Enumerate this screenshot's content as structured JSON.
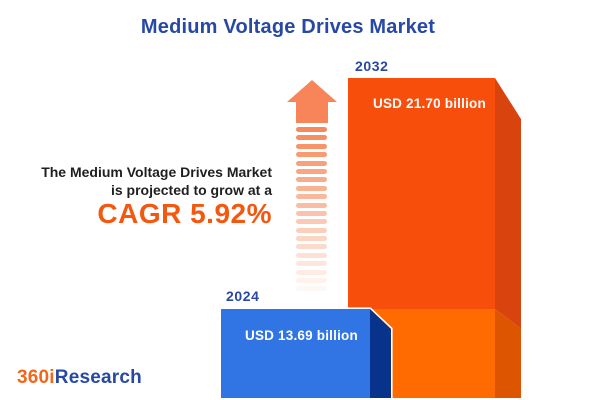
{
  "title": "Medium Voltage Drives Market",
  "intro": {
    "line1": "The Medium Voltage Drives Market",
    "line2": "is projected to grow at a",
    "cagr": "CAGR 5.92%"
  },
  "bars": {
    "b2024": {
      "year": "2024",
      "value_label": "USD 13.69 billion",
      "front_color": "#3175E5",
      "side_color": "#07338B"
    },
    "b2032": {
      "year": "2032",
      "value_label": "USD 21.70 billion",
      "front_color": "#F74E0C",
      "side_color": "#D9440E",
      "base_front_color": "#FF6B00",
      "base_side_color": "#DD5501"
    }
  },
  "arrow": {
    "head_color": "#F8855A",
    "stripe_rgb": "246,130,80",
    "stripe_count": 20
  },
  "logo": {
    "part1": "360i",
    "part2": "Research",
    "part1_color": "#F2671C",
    "part2_color": "#2848A4"
  },
  "colors": {
    "title_blue": "#2748A5",
    "year_label_blue": "#2848A4",
    "cagr_orange": "#F4570F",
    "body_text": "#1F1F1F",
    "background": "#FFFFFF"
  },
  "chart_data": {
    "type": "bar",
    "categories": [
      "2024",
      "2032"
    ],
    "values": [
      13.69,
      21.7
    ],
    "unit": "USD billion",
    "title": "Medium Voltage Drives Market",
    "value_labels": [
      "USD 13.69 billion",
      "USD 21.70 billion"
    ],
    "annotation": "The Medium Voltage Drives Market is projected to grow at a CAGR 5.92%",
    "cagr_percent": 5.92,
    "bar_colors": [
      "#3175E5",
      "#F74E0C"
    ],
    "xlabel": "",
    "ylabel": "",
    "axes": "none",
    "grid": false,
    "legend_position": "none"
  }
}
